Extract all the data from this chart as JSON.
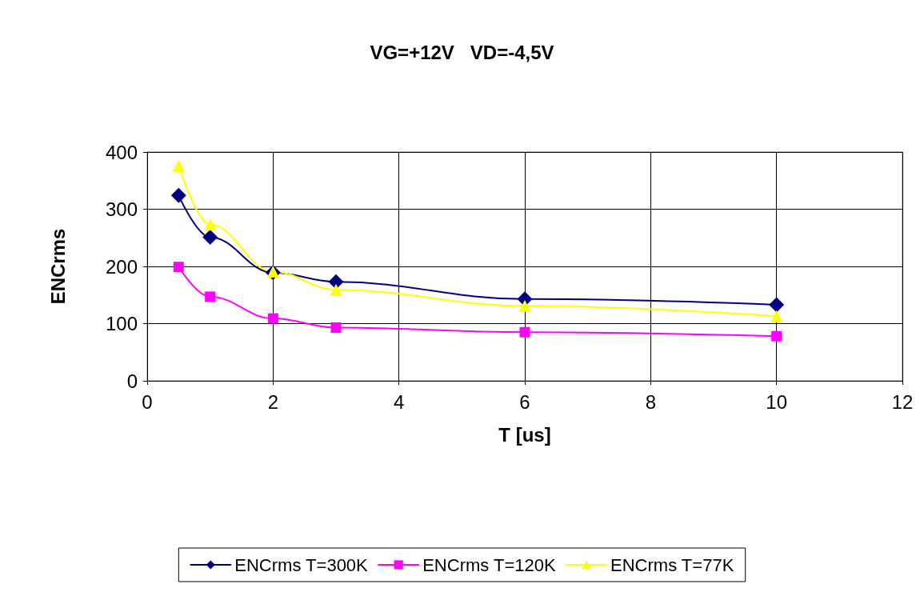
{
  "chart_data": {
    "type": "line",
    "title": "VG=+12V   VD=-4,5V",
    "xlabel": "T [us]",
    "ylabel": "ENCrms",
    "x": [
      0.5,
      1,
      2,
      3,
      6,
      10
    ],
    "series": [
      {
        "name": "ENCrms T=300K",
        "color": "#000080",
        "marker": "diamond",
        "values": [
          324,
          251,
          189,
          173,
          143,
          133
        ]
      },
      {
        "name": "ENCrms T=120K",
        "color": "#ff00ff",
        "marker": "square",
        "values": [
          199,
          147,
          109,
          93,
          85,
          78
        ]
      },
      {
        "name": "ENCrms T=77K",
        "color": "#ffff00",
        "marker": "triangle",
        "values": [
          376,
          273,
          191,
          159,
          131,
          113
        ]
      }
    ],
    "xlim": [
      0,
      12
    ],
    "xticks": [
      0,
      2,
      4,
      6,
      8,
      10,
      12
    ],
    "ylim": [
      0,
      400
    ],
    "yticks": [
      0,
      100,
      200,
      300,
      400
    ],
    "grid": true,
    "legend": "bottom",
    "line_style": "solid"
  }
}
